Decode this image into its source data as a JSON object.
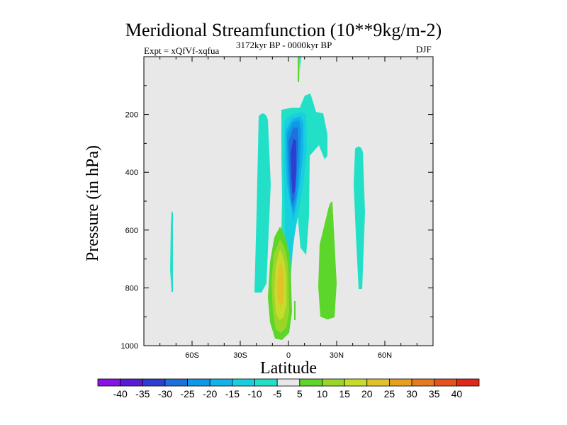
{
  "chart_data": {
    "type": "contour",
    "title": "Meridional Streamfunction (10**9kg/m-2)",
    "subtitle_left": "Expt = xQfVf-xqfua",
    "subtitle_center": "3172kyr BP - 0000kyr BP",
    "subtitle_right": "DJF",
    "xlabel": "Latitude",
    "ylabel": "Pressure (in hPa)",
    "xlim": [
      -90,
      90
    ],
    "ylim": [
      1000,
      0
    ],
    "x_ticks": [
      {
        "value": -60,
        "label": "60S"
      },
      {
        "value": -30,
        "label": "30S"
      },
      {
        "value": 0,
        "label": "0"
      },
      {
        "value": 30,
        "label": "30N"
      },
      {
        "value": 60,
        "label": "60N"
      }
    ],
    "y_ticks": [
      {
        "value": 200,
        "label": "200"
      },
      {
        "value": 400,
        "label": "400"
      },
      {
        "value": 600,
        "label": "600"
      },
      {
        "value": 800,
        "label": "800"
      },
      {
        "value": 1000,
        "label": "1000"
      }
    ],
    "colorbar": {
      "labels": [
        "-40",
        "-35",
        "-30",
        "-25",
        "-20",
        "-15",
        "-10",
        "-5",
        "5",
        "10",
        "15",
        "20",
        "25",
        "30",
        "35",
        "40"
      ],
      "colors": [
        "#8a12e6",
        "#5a1bd6",
        "#2d3fd0",
        "#1f70dc",
        "#0f98e6",
        "#12b4e8",
        "#18cfe0",
        "#22e0c8",
        "#e8e8e8",
        "#5cd62a",
        "#9ad62a",
        "#c7dc2a",
        "#e2c22a",
        "#e6a01e",
        "#e67a1e",
        "#e6521e",
        "#e0281a"
      ]
    },
    "features": [
      {
        "name": "southern-positive-cell",
        "lat_range": [
          -14,
          0
        ],
        "p_range": [
          620,
          980
        ],
        "peak_value": 20,
        "sign": "positive"
      },
      {
        "name": "equatorial-negative-cell",
        "lat_range": [
          -4,
          12
        ],
        "p_range": [
          180,
          800
        ],
        "peak_value": -30,
        "sign": "negative"
      },
      {
        "name": "southern-negative-cell",
        "lat_range": [
          -20,
          -10
        ],
        "p_range": [
          180,
          800
        ],
        "peak_value": -5,
        "sign": "negative"
      },
      {
        "name": "northern-positive-cell",
        "lat_range": [
          18,
          30
        ],
        "p_range": [
          480,
          900
        ],
        "peak_value": 5,
        "sign": "positive"
      },
      {
        "name": "northern-negative-cell",
        "lat_range": [
          42,
          48
        ],
        "p_range": [
          300,
          800
        ],
        "peak_value": -5,
        "sign": "negative"
      },
      {
        "name": "far-south-negative-cell",
        "lat_range": [
          -73,
          -71
        ],
        "p_range": [
          530,
          820
        ],
        "peak_value": -5,
        "sign": "negative"
      }
    ]
  }
}
